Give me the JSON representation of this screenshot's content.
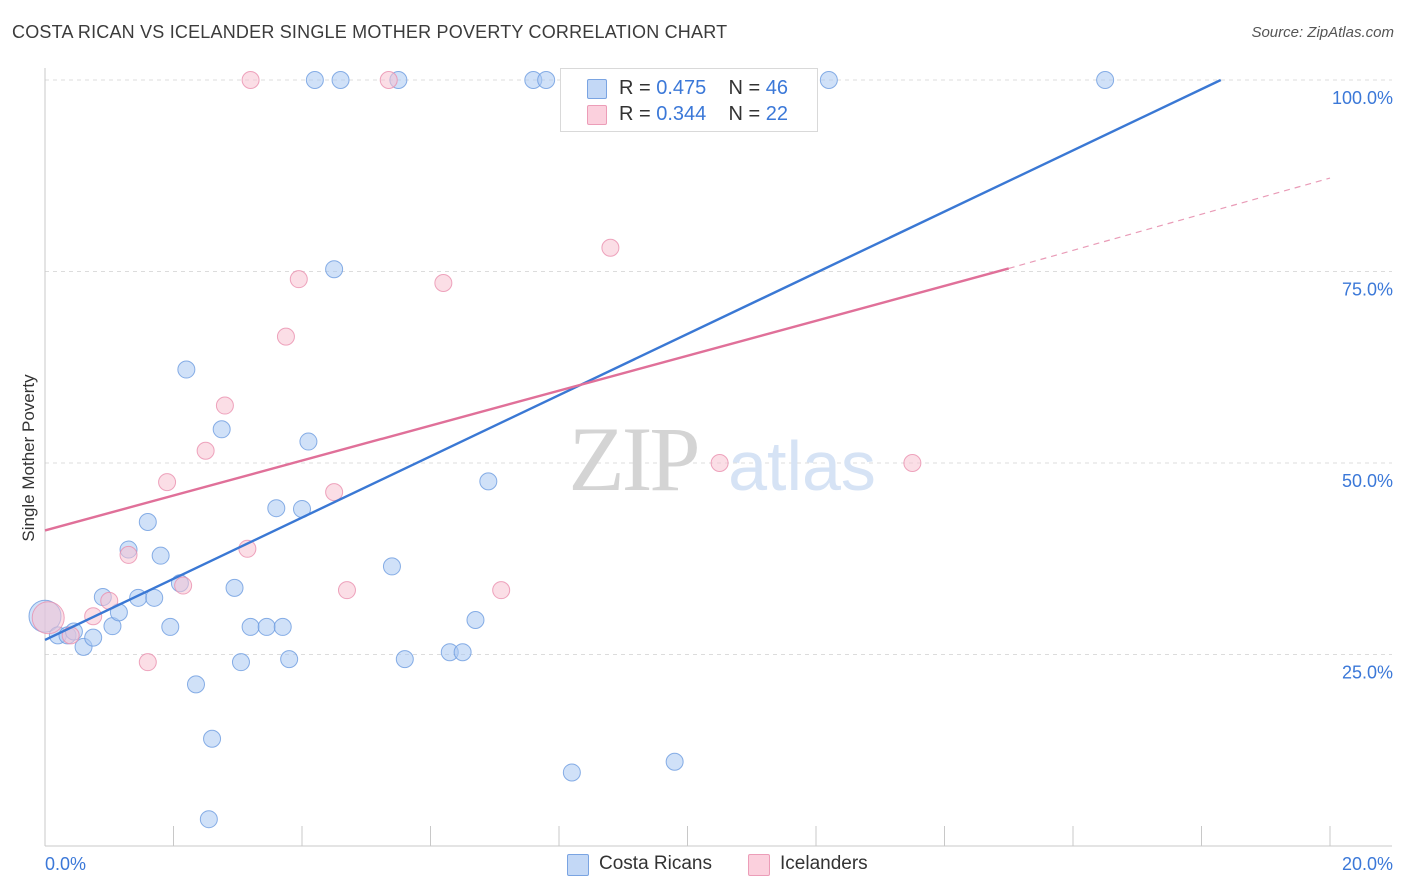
{
  "title": "COSTA RICAN VS ICELANDER SINGLE MOTHER POVERTY CORRELATION CHART",
  "source": "Source: ZipAtlas.com",
  "watermark": {
    "zip": "ZIP",
    "atlas": "atlas"
  },
  "colors": {
    "blue_fill": "#a9c8f3",
    "blue_stroke": "#6b9be0",
    "blue_line": "#3a78d4",
    "pink_fill": "#f8c2d2",
    "pink_stroke": "#ea8fae",
    "pink_line": "#e07099",
    "axis_label": "#3b78d8",
    "grid": "#dcdcdc"
  },
  "legend_top": [
    {
      "series": "Costa Ricans",
      "r_label": "R =",
      "r_value": "0.475",
      "n_label": "N =",
      "n_value": "46"
    },
    {
      "series": "Icelanders",
      "r_label": "R =",
      "r_value": "0.344",
      "n_label": "N =",
      "n_value": "22"
    }
  ],
  "chart_data": {
    "type": "scatter",
    "title": "COSTA RICAN VS ICELANDER SINGLE MOTHER POVERTY CORRELATION CHART",
    "xlabel": "",
    "ylabel": "Single Mother Poverty",
    "xlim": [
      0,
      20
    ],
    "ylim": [
      0,
      100
    ],
    "x_tick_labels": [
      "0.0%",
      "20.0%"
    ],
    "y_tick_labels": [
      "25.0%",
      "50.0%",
      "75.0%",
      "100.0%"
    ],
    "y_ticks": [
      25,
      50,
      75,
      100
    ],
    "grid": true,
    "legend": "top-center",
    "series": [
      {
        "name": "Costa Ricans",
        "points": [
          {
            "x": 0.0,
            "y": 30.0,
            "big": true
          },
          {
            "x": 0.2,
            "y": 27.5
          },
          {
            "x": 0.35,
            "y": 27.5
          },
          {
            "x": 0.45,
            "y": 28.0
          },
          {
            "x": 0.6,
            "y": 26.0
          },
          {
            "x": 0.75,
            "y": 27.2
          },
          {
            "x": 0.9,
            "y": 32.5
          },
          {
            "x": 1.05,
            "y": 28.7
          },
          {
            "x": 1.15,
            "y": 30.5
          },
          {
            "x": 1.3,
            "y": 38.7
          },
          {
            "x": 1.45,
            "y": 32.4
          },
          {
            "x": 1.6,
            "y": 42.3
          },
          {
            "x": 1.7,
            "y": 32.4
          },
          {
            "x": 1.8,
            "y": 37.9
          },
          {
            "x": 1.95,
            "y": 28.6
          },
          {
            "x": 2.1,
            "y": 34.3
          },
          {
            "x": 2.2,
            "y": 62.2
          },
          {
            "x": 2.35,
            "y": 21.1
          },
          {
            "x": 2.55,
            "y": 3.5
          },
          {
            "x": 2.6,
            "y": 14.0
          },
          {
            "x": 2.75,
            "y": 54.4
          },
          {
            "x": 2.95,
            "y": 33.7
          },
          {
            "x": 3.05,
            "y": 24.0
          },
          {
            "x": 3.2,
            "y": 28.6
          },
          {
            "x": 3.45,
            "y": 28.6
          },
          {
            "x": 3.6,
            "y": 44.1
          },
          {
            "x": 3.7,
            "y": 28.6
          },
          {
            "x": 3.8,
            "y": 24.4
          },
          {
            "x": 4.0,
            "y": 44.0
          },
          {
            "x": 4.1,
            "y": 52.8
          },
          {
            "x": 4.2,
            "y": 100.0
          },
          {
            "x": 4.5,
            "y": 75.3
          },
          {
            "x": 4.6,
            "y": 100.0
          },
          {
            "x": 5.4,
            "y": 36.5
          },
          {
            "x": 5.5,
            "y": 100.0
          },
          {
            "x": 5.6,
            "y": 24.4
          },
          {
            "x": 6.3,
            "y": 25.3
          },
          {
            "x": 6.5,
            "y": 25.3
          },
          {
            "x": 6.7,
            "y": 29.5
          },
          {
            "x": 6.9,
            "y": 47.6
          },
          {
            "x": 7.6,
            "y": 100.0
          },
          {
            "x": 7.8,
            "y": 100.0
          },
          {
            "x": 8.2,
            "y": 9.6
          },
          {
            "x": 9.8,
            "y": 11.0
          },
          {
            "x": 12.2,
            "y": 100.0
          },
          {
            "x": 16.5,
            "y": 100.0
          }
        ],
        "trend": {
          "x0": 0.0,
          "y0": 26.9,
          "x1": 18.3,
          "y1": 100.0,
          "dashed_to_x": null
        }
      },
      {
        "name": "Icelanders",
        "points": [
          {
            "x": 0.05,
            "y": 29.8,
            "big": true
          },
          {
            "x": 0.4,
            "y": 27.5
          },
          {
            "x": 0.75,
            "y": 30.0
          },
          {
            "x": 1.0,
            "y": 32.0
          },
          {
            "x": 1.3,
            "y": 38.0
          },
          {
            "x": 1.6,
            "y": 24.0
          },
          {
            "x": 1.9,
            "y": 47.5
          },
          {
            "x": 2.15,
            "y": 34.0
          },
          {
            "x": 2.5,
            "y": 51.6
          },
          {
            "x": 2.8,
            "y": 57.5
          },
          {
            "x": 3.2,
            "y": 100.0
          },
          {
            "x": 3.15,
            "y": 38.8
          },
          {
            "x": 3.75,
            "y": 66.5
          },
          {
            "x": 3.95,
            "y": 74.0
          },
          {
            "x": 4.5,
            "y": 46.2
          },
          {
            "x": 4.7,
            "y": 33.4
          },
          {
            "x": 5.35,
            "y": 100.0
          },
          {
            "x": 6.2,
            "y": 73.5
          },
          {
            "x": 7.1,
            "y": 33.4
          },
          {
            "x": 8.8,
            "y": 78.1
          },
          {
            "x": 10.5,
            "y": 50.0
          },
          {
            "x": 13.5,
            "y": 50.0
          }
        ],
        "trend": {
          "x0": 0.0,
          "y0": 41.2,
          "x1": 15.0,
          "y1": 75.4,
          "dashed_to_x": 20.0,
          "dashed_to_y": 87.2
        }
      }
    ]
  }
}
